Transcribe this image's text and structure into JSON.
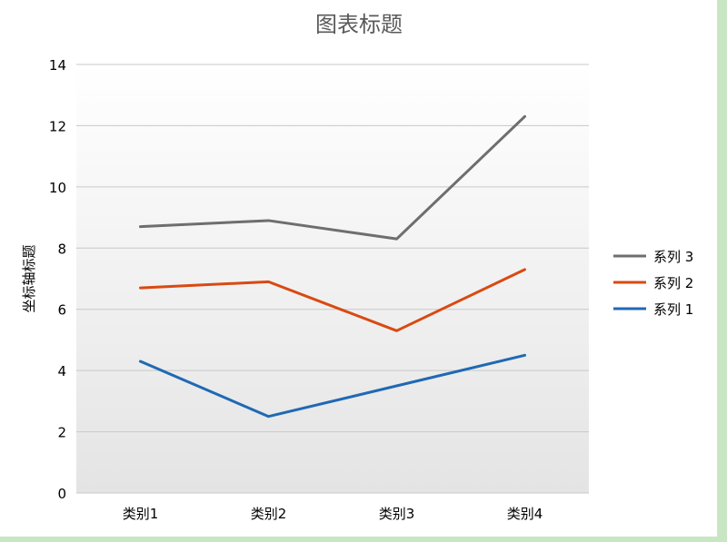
{
  "colors": {
    "series_3": "#6e6e6e",
    "series_2": "#d84a12",
    "series_1": "#1f69b4",
    "gridline": "#c8c8c8"
  },
  "chart_data": {
    "type": "line",
    "title": "图表标题",
    "xlabel": "",
    "ylabel": "坐标轴标题",
    "categories": [
      "类别1",
      "类别2",
      "类别3",
      "类别4"
    ],
    "ylim": [
      0,
      14
    ],
    "yticks": [
      "0",
      "2",
      "4",
      "6",
      "8",
      "10",
      "12",
      "14"
    ],
    "grid": true,
    "legend": "right",
    "series": [
      {
        "name": "系列 1",
        "values": [
          4.3,
          2.5,
          3.5,
          4.5
        ],
        "color": "#1f69b4"
      },
      {
        "name": "系列 2",
        "values": [
          6.7,
          6.9,
          5.3,
          7.3
        ],
        "color": "#d84a12"
      },
      {
        "name": "系列 3",
        "values": [
          8.7,
          8.9,
          8.3,
          12.3
        ],
        "color": "#6e6e6e"
      }
    ],
    "legend_order": [
      "系列 3",
      "系列 2",
      "系列 1"
    ]
  }
}
